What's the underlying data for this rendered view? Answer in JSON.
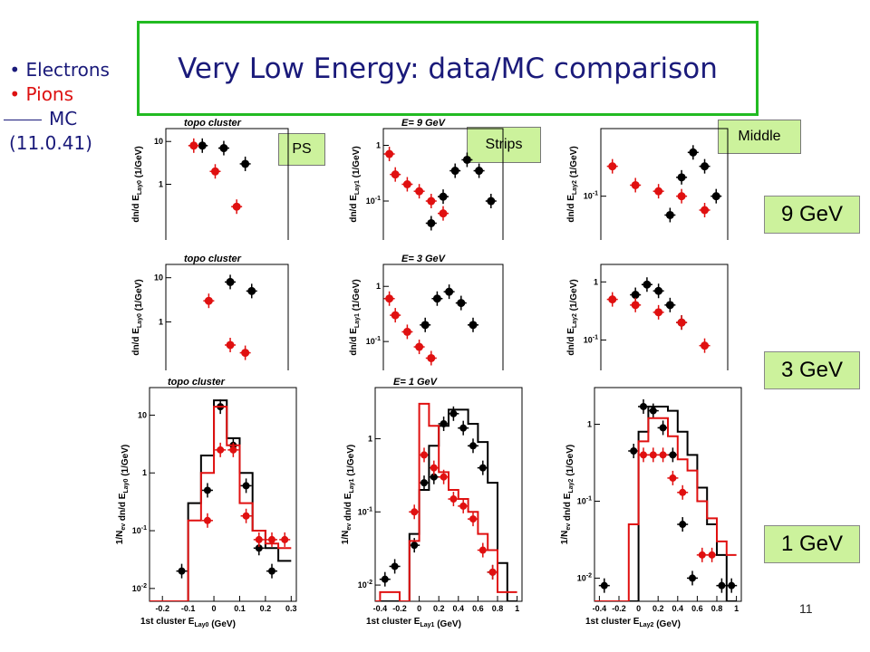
{
  "header": {
    "title": "Very Low Energy: data/MC comparison"
  },
  "legend": {
    "electrons": "Electrons",
    "pions": "Pions",
    "mc": "MC",
    "version": "(11.0.41)"
  },
  "layer_tags": {
    "ps": "PS",
    "strips": "Strips",
    "middle": "Middle"
  },
  "energy_labels": {
    "e9": "9 GeV",
    "e3": "3 GeV",
    "e1": "1 GeV"
  },
  "page_number": "11",
  "colors": {
    "electrons": "#000000",
    "pions": "#e01010",
    "border": "#22bb22",
    "tag": "#ccf29c"
  },
  "chart_data": [
    {
      "type": "scatter",
      "id": "r1c1",
      "title": "topo cluster",
      "ylabel": "dn/d E_Lay0 (1/GeV)",
      "log_y": true,
      "yticks": [
        "10",
        "1"
      ],
      "series": [
        {
          "name": "Electrons",
          "kind": "data",
          "x": [
            -0.08,
            0.02,
            0.12
          ],
          "y": [
            8,
            7,
            3
          ]
        },
        {
          "name": "Pions",
          "kind": "data",
          "x": [
            -0.12,
            -0.02,
            0.08
          ],
          "y": [
            8,
            2,
            0.3
          ]
        }
      ]
    },
    {
      "type": "scatter",
      "id": "r1c2",
      "title": "E= 9 GeV",
      "ylabel": "dn/d E_Lay1 (1/GeV)",
      "log_y": true,
      "yticks": [
        "1",
        "10^-1"
      ],
      "series": [
        {
          "name": "Electrons",
          "kind": "data",
          "x": [
            0.35,
            0.45,
            0.55,
            0.65,
            0.75,
            0.85
          ],
          "y": [
            0.04,
            0.12,
            0.35,
            0.55,
            0.35,
            0.1
          ]
        },
        {
          "name": "Pions",
          "kind": "data",
          "x": [
            0.0,
            0.05,
            0.15,
            0.25,
            0.35,
            0.45
          ],
          "y": [
            0.7,
            0.3,
            0.2,
            0.15,
            0.1,
            0.06
          ]
        }
      ]
    },
    {
      "type": "scatter",
      "id": "r1c3",
      "title": "",
      "ylabel": "dn/d E_Lay2 (1/GeV)",
      "log_y": true,
      "yticks": [
        "10^-1"
      ],
      "series": [
        {
          "name": "Electrons",
          "kind": "data",
          "x": [
            0.5,
            0.6,
            0.7,
            0.8,
            0.9
          ],
          "y": [
            0.05,
            0.2,
            0.5,
            0.3,
            0.1
          ]
        },
        {
          "name": "Pions",
          "kind": "data",
          "x": [
            0.0,
            0.2,
            0.4,
            0.6,
            0.8
          ],
          "y": [
            0.3,
            0.15,
            0.12,
            0.1,
            0.06
          ]
        }
      ]
    },
    {
      "type": "scatter",
      "id": "r2c1",
      "title": "topo cluster",
      "ylabel": "dn/d E_Lay0 (1/GeV)",
      "log_y": true,
      "yticks": [
        "10",
        "1"
      ],
      "series": [
        {
          "name": "Electrons",
          "kind": "data",
          "x": [
            0.05,
            0.15
          ],
          "y": [
            8,
            5
          ]
        },
        {
          "name": "Pions",
          "kind": "data",
          "x": [
            -0.05,
            0.05,
            0.12
          ],
          "y": [
            3,
            0.3,
            0.2
          ]
        }
      ]
    },
    {
      "type": "scatter",
      "id": "r2c2",
      "title": "E= 3 GeV",
      "ylabel": "dn/d E_Lay1 (1/GeV)",
      "log_y": true,
      "yticks": [
        "1",
        "10^-1"
      ],
      "series": [
        {
          "name": "Electrons",
          "kind": "data",
          "x": [
            0.3,
            0.4,
            0.5,
            0.6,
            0.7
          ],
          "y": [
            0.2,
            0.6,
            0.8,
            0.5,
            0.2
          ]
        },
        {
          "name": "Pions",
          "kind": "data",
          "x": [
            0.0,
            0.05,
            0.15,
            0.25,
            0.35
          ],
          "y": [
            0.6,
            0.3,
            0.15,
            0.08,
            0.05
          ]
        }
      ]
    },
    {
      "type": "scatter",
      "id": "r2c3",
      "title": "",
      "ylabel": "dn/d E_Lay2 (1/GeV)",
      "log_y": true,
      "yticks": [
        "1",
        "10^-1"
      ],
      "series": [
        {
          "name": "Electrons",
          "kind": "data",
          "x": [
            0.2,
            0.3,
            0.4,
            0.5,
            0.6
          ],
          "y": [
            0.6,
            0.9,
            0.7,
            0.4,
            0.2
          ]
        },
        {
          "name": "Pions",
          "kind": "data",
          "x": [
            0.0,
            0.2,
            0.4,
            0.6,
            0.8
          ],
          "y": [
            0.5,
            0.4,
            0.3,
            0.2,
            0.08
          ]
        }
      ]
    },
    {
      "type": "scatter",
      "id": "r3c1",
      "title": "topo cluster",
      "xlabel": "1st cluster   E_Lay0  (GeV)",
      "ylabel": "1/N_ev dn/d E_Lay0 (1/GeV)",
      "log_y": true,
      "xlim": [
        -0.25,
        0.32
      ],
      "ylim": [
        0.006,
        30
      ],
      "xticks": [
        -0.2,
        -0.1,
        0,
        0.1,
        0.2,
        0.3
      ],
      "yticks": [
        10,
        1,
        0.1,
        0.01
      ],
      "ytick_labels": [
        "10",
        "1",
        "10^-1",
        "10^-2"
      ],
      "series": [
        {
          "name": "Electrons",
          "kind": "data",
          "x": [
            -0.125,
            -0.025,
            0.025,
            0.075,
            0.125,
            0.175,
            0.225
          ],
          "y": [
            0.02,
            0.5,
            14,
            3,
            0.6,
            0.05,
            0.02
          ]
        },
        {
          "name": "Pions",
          "kind": "data",
          "x": [
            -0.025,
            0.025,
            0.075,
            0.125,
            0.175,
            0.225,
            0.275
          ],
          "y": [
            0.15,
            2.5,
            2.5,
            0.18,
            0.07,
            0.07,
            0.07
          ]
        },
        {
          "name": "MC Electrons",
          "kind": "mc",
          "x": [
            -0.25,
            -0.2,
            -0.15,
            -0.1,
            -0.05,
            0,
            0.05,
            0.1,
            0.15,
            0.2,
            0.25,
            0.3
          ],
          "y": [
            0.006,
            0.006,
            0.006,
            0.3,
            2,
            18,
            4,
            1,
            0.1,
            0.05,
            0.03,
            0.03
          ]
        },
        {
          "name": "MC Pions",
          "kind": "mc",
          "x": [
            -0.25,
            -0.2,
            -0.15,
            -0.1,
            -0.05,
            0,
            0.05,
            0.1,
            0.15,
            0.2,
            0.25,
            0.3
          ],
          "y": [
            0.006,
            0.006,
            0.006,
            0.15,
            1,
            14,
            3,
            0.3,
            0.1,
            0.06,
            0.05,
            0.05
          ]
        }
      ]
    },
    {
      "type": "scatter",
      "id": "r3c2",
      "title": "E= 1 GeV",
      "xlabel": "1st cluster   E_Lay1  (GeV)",
      "ylabel": "1/N_ev dn/d E_Lay1 (1/GeV)",
      "log_y": true,
      "xlim": [
        -0.45,
        1.05
      ],
      "ylim": [
        0.006,
        5
      ],
      "xticks": [
        -0.4,
        -0.2,
        0,
        0.2,
        0.4,
        0.6,
        0.8,
        1
      ],
      "yticks": [
        1,
        0.1,
        0.01
      ],
      "ytick_labels": [
        "1",
        "10^-1",
        "10^-2"
      ],
      "series": [
        {
          "name": "Electrons",
          "kind": "data",
          "x": [
            -0.35,
            -0.25,
            -0.05,
            0.05,
            0.15,
            0.25,
            0.35,
            0.45,
            0.55,
            0.65,
            0.75
          ],
          "y": [
            0.012,
            0.018,
            0.035,
            0.25,
            0.3,
            1.6,
            2.2,
            1.4,
            0.8,
            0.4,
            0.015
          ]
        },
        {
          "name": "Pions",
          "kind": "data",
          "x": [
            -0.05,
            0.05,
            0.15,
            0.25,
            0.35,
            0.45,
            0.55,
            0.65,
            0.75
          ],
          "y": [
            0.1,
            0.6,
            0.4,
            0.3,
            0.15,
            0.12,
            0.08,
            0.03,
            0.015
          ]
        },
        {
          "name": "MC Electrons",
          "kind": "mc",
          "x": [
            -0.45,
            -0.4,
            -0.3,
            -0.2,
            -0.1,
            0,
            0.1,
            0.2,
            0.3,
            0.4,
            0.5,
            0.6,
            0.7,
            0.8,
            0.9,
            1.0
          ],
          "y": [
            0.006,
            0.006,
            0.006,
            0.006,
            0.05,
            0.2,
            0.8,
            1.5,
            2.5,
            2.5,
            1.6,
            0.9,
            0.25,
            0.02,
            0.006,
            0.006
          ]
        },
        {
          "name": "MC Pions",
          "kind": "mc",
          "x": [
            -0.45,
            -0.4,
            -0.3,
            -0.2,
            -0.1,
            0,
            0.1,
            0.2,
            0.3,
            0.4,
            0.5,
            0.6,
            0.7,
            0.8,
            0.9,
            1.0
          ],
          "y": [
            0.006,
            0.008,
            0.008,
            0.006,
            0.04,
            3,
            1.5,
            0.35,
            0.2,
            0.15,
            0.1,
            0.05,
            0.03,
            0.008,
            0.008,
            0.008
          ]
        }
      ]
    },
    {
      "type": "scatter",
      "id": "r3c3",
      "title": "",
      "xlabel": "1st cluster   E_Lay2  (GeV)",
      "ylabel": "1/N_ev dn/d E_Lay2 (1/GeV)",
      "log_y": true,
      "xlim": [
        -0.45,
        1.05
      ],
      "ylim": [
        0.005,
        3
      ],
      "xticks": [
        -0.4,
        -0.2,
        0,
        0.2,
        0.4,
        0.6,
        0.8,
        1
      ],
      "yticks": [
        1,
        0.1,
        0.01
      ],
      "ytick_labels": [
        "1",
        "10^-1",
        "10^-2"
      ],
      "series": [
        {
          "name": "Electrons",
          "kind": "data",
          "x": [
            -0.35,
            -0.05,
            0.05,
            0.15,
            0.25,
            0.35,
            0.45,
            0.55,
            0.85,
            0.95
          ],
          "y": [
            0.008,
            0.45,
            1.7,
            1.5,
            0.9,
            0.4,
            0.05,
            0.01,
            0.008,
            0.008
          ]
        },
        {
          "name": "Pions",
          "kind": "data",
          "x": [
            0.05,
            0.15,
            0.25,
            0.35,
            0.45,
            0.65,
            0.75
          ],
          "y": [
            0.4,
            0.4,
            0.4,
            0.2,
            0.13,
            0.02,
            0.02
          ]
        },
        {
          "name": "MC Electrons",
          "kind": "mc",
          "x": [
            -0.45,
            -0.4,
            -0.3,
            -0.2,
            -0.1,
            0,
            0.1,
            0.2,
            0.3,
            0.4,
            0.5,
            0.6,
            0.7,
            0.8,
            0.9,
            1.0
          ],
          "y": [
            0.005,
            0.005,
            0.005,
            0.005,
            0.005,
            0.8,
            1.7,
            1.7,
            1.5,
            0.8,
            0.4,
            0.15,
            0.05,
            0.02,
            0.005,
            0.005
          ]
        },
        {
          "name": "MC Pions",
          "kind": "mc",
          "x": [
            -0.45,
            -0.4,
            -0.3,
            -0.2,
            -0.1,
            0,
            0.1,
            0.2,
            0.3,
            0.4,
            0.5,
            0.6,
            0.7,
            0.8,
            0.9,
            1.0
          ],
          "y": [
            0.005,
            0.005,
            0.005,
            0.005,
            0.05,
            0.6,
            1.2,
            1.2,
            0.7,
            0.35,
            0.25,
            0.1,
            0.06,
            0.03,
            0.02,
            0.02
          ]
        }
      ]
    }
  ]
}
